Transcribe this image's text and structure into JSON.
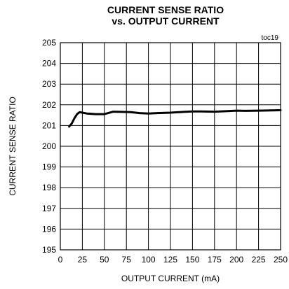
{
  "chart_data": {
    "type": "line",
    "title": "CURRENT SENSE RATIO",
    "subtitle": "vs. OUTPUT CURRENT",
    "note": "toc19",
    "xlabel": "OUTPUT CURRENT (mA)",
    "ylabel": "CURRENT SENSE RATIO",
    "xlim": [
      0,
      250
    ],
    "ylim": [
      195,
      205
    ],
    "xticks": [
      0,
      25,
      50,
      75,
      100,
      125,
      150,
      175,
      200,
      225,
      250
    ],
    "yticks": [
      195,
      196,
      197,
      198,
      199,
      200,
      201,
      202,
      203,
      204,
      205
    ],
    "grid": true,
    "series": [
      {
        "x": [
          10,
          13,
          16,
          19,
          22,
          25,
          30,
          40,
          50,
          60,
          70,
          80,
          90,
          100,
          110,
          125,
          140,
          150,
          160,
          175,
          190,
          200,
          210,
          225,
          240,
          250
        ],
        "y": [
          200.95,
          201.1,
          201.35,
          201.55,
          201.65,
          201.62,
          201.58,
          201.55,
          201.55,
          201.67,
          201.66,
          201.65,
          201.6,
          201.58,
          201.6,
          201.62,
          201.66,
          201.68,
          201.68,
          201.67,
          201.7,
          201.72,
          201.71,
          201.72,
          201.73,
          201.74
        ]
      }
    ]
  }
}
